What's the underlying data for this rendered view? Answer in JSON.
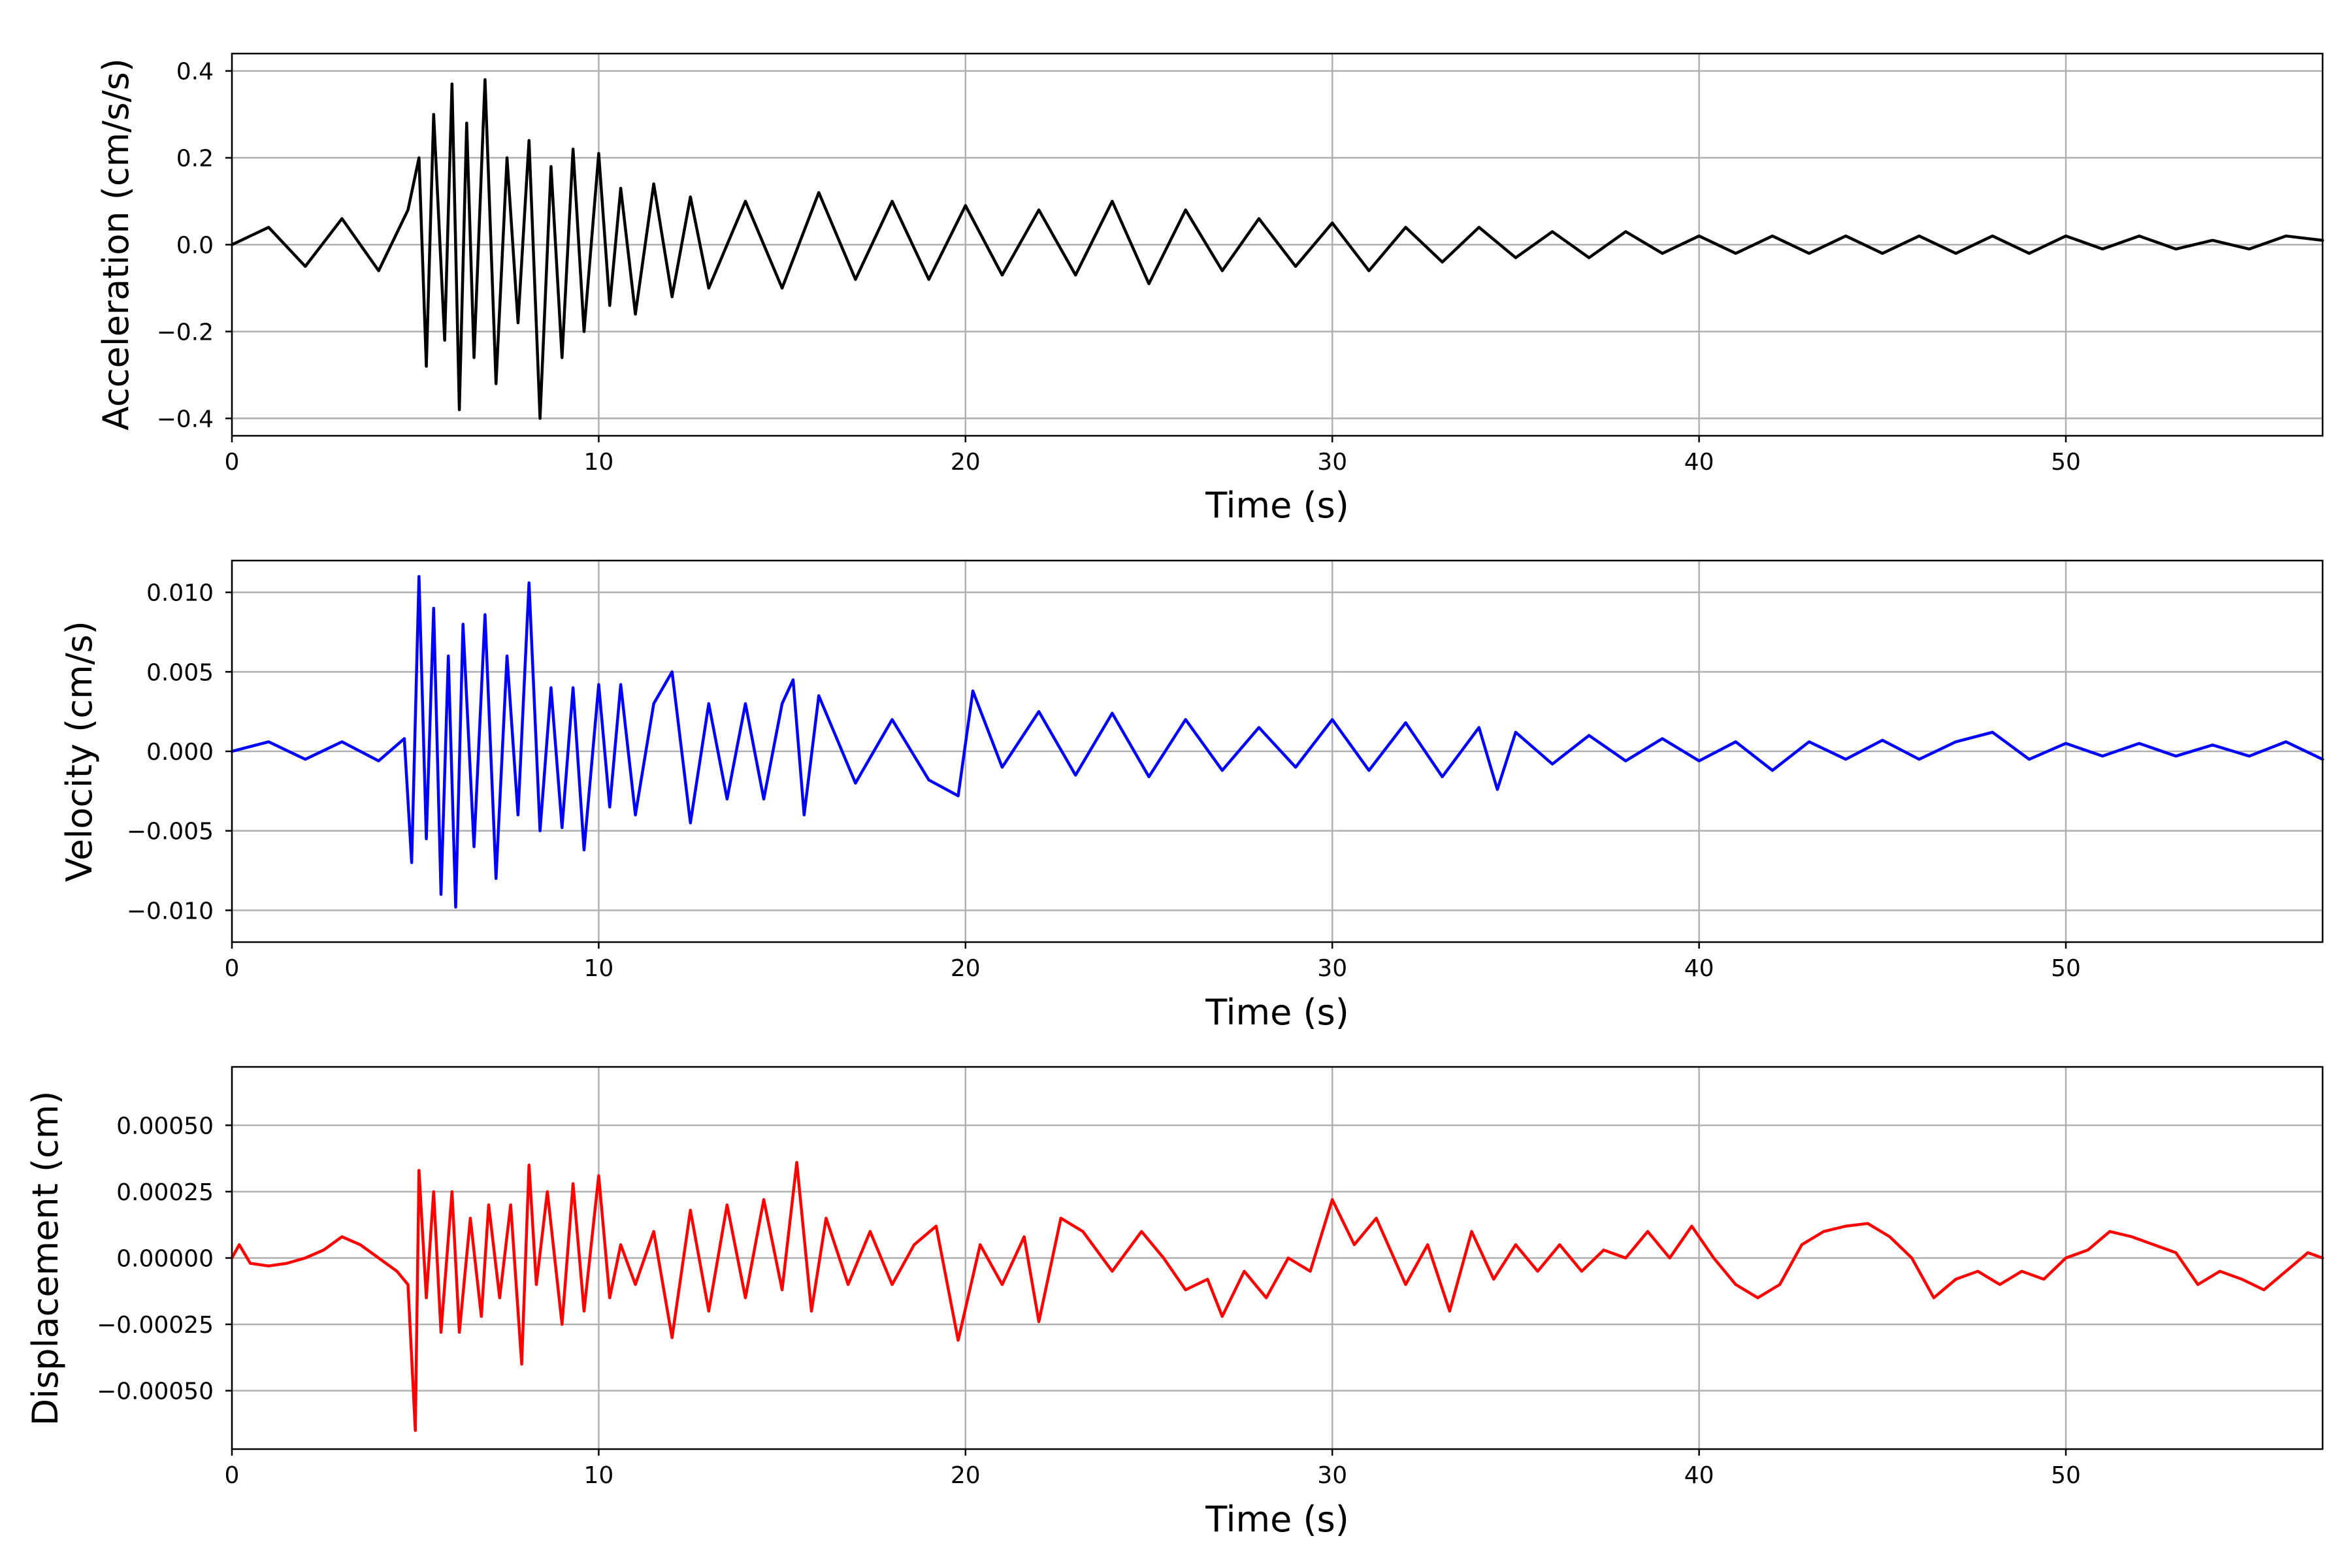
{
  "chart_data": [
    {
      "type": "line",
      "title": "",
      "xlabel": "Time (s)",
      "ylabel": "Acceleration (cm/s/s)",
      "xlim": [
        0,
        57
      ],
      "ylim": [
        -0.44,
        0.44
      ],
      "xticks": [
        0,
        10,
        20,
        30,
        40,
        50
      ],
      "xtick_labels": [
        "0",
        "10",
        "20",
        "30",
        "40",
        "50"
      ],
      "yticks": [
        -0.4,
        -0.2,
        0.0,
        0.2,
        0.4
      ],
      "ytick_labels": [
        "−0.4",
        "−0.2",
        "0.0",
        "0.2",
        "0.4"
      ],
      "grid": true,
      "color": "#000000",
      "series": [
        {
          "x": [
            0,
            1,
            2,
            3,
            4,
            4.8,
            5.1,
            5.3,
            5.5,
            5.8,
            6.0,
            6.2,
            6.4,
            6.6,
            6.9,
            7.2,
            7.5,
            7.8,
            8.1,
            8.4,
            8.7,
            9.0,
            9.3,
            9.6,
            10.0,
            10.3,
            10.6,
            11.0,
            11.5,
            12.0,
            12.5,
            13.0,
            14.0,
            15.0,
            16.0,
            17.0,
            18.0,
            19.0,
            20.0,
            21.0,
            22.0,
            23.0,
            24.0,
            25.0,
            26.0,
            27.0,
            28.0,
            29.0,
            30.0,
            31.0,
            32.0,
            33.0,
            34.0,
            35.0,
            36.0,
            37.0,
            38.0,
            39.0,
            40.0,
            41.0,
            42.0,
            43.0,
            44.0,
            45.0,
            46.0,
            47.0,
            48.0,
            49.0,
            50.0,
            51.0,
            52.0,
            53.0,
            54.0,
            55.0,
            56.0,
            57.0
          ],
          "y": [
            0.0,
            0.04,
            -0.05,
            0.06,
            -0.06,
            0.08,
            0.2,
            -0.28,
            0.3,
            -0.22,
            0.37,
            -0.38,
            0.28,
            -0.26,
            0.38,
            -0.32,
            0.2,
            -0.18,
            0.24,
            -0.4,
            0.18,
            -0.26,
            0.22,
            -0.2,
            0.21,
            -0.14,
            0.13,
            -0.16,
            0.14,
            -0.12,
            0.11,
            -0.1,
            0.1,
            -0.1,
            0.12,
            -0.08,
            0.1,
            -0.08,
            0.09,
            -0.07,
            0.08,
            -0.07,
            0.1,
            -0.09,
            0.08,
            -0.06,
            0.06,
            -0.05,
            0.05,
            -0.06,
            0.04,
            -0.04,
            0.04,
            -0.03,
            0.03,
            -0.03,
            0.03,
            -0.02,
            0.02,
            -0.02,
            0.02,
            -0.02,
            0.02,
            -0.02,
            0.02,
            -0.02,
            0.02,
            -0.02,
            0.02,
            -0.01,
            0.02,
            -0.01,
            0.01,
            -0.01,
            0.02,
            0.01
          ]
        }
      ]
    },
    {
      "type": "line",
      "title": "",
      "xlabel": "Time (s)",
      "ylabel": "Velocity (cm/s)",
      "xlim": [
        0,
        57
      ],
      "ylim": [
        -0.012,
        0.012
      ],
      "xticks": [
        0,
        10,
        20,
        30,
        40,
        50
      ],
      "xtick_labels": [
        "0",
        "10",
        "20",
        "30",
        "40",
        "50"
      ],
      "yticks": [
        -0.01,
        -0.005,
        0.0,
        0.005,
        0.01
      ],
      "ytick_labels": [
        "−0.010",
        "−0.005",
        "0.000",
        "0.005",
        "0.010"
      ],
      "grid": true,
      "color": "#0000ff",
      "series": [
        {
          "x": [
            0,
            1,
            2,
            3,
            4,
            4.7,
            4.9,
            5.1,
            5.3,
            5.5,
            5.7,
            5.9,
            6.1,
            6.3,
            6.6,
            6.9,
            7.2,
            7.5,
            7.8,
            8.1,
            8.4,
            8.7,
            9.0,
            9.3,
            9.6,
            10.0,
            10.3,
            10.6,
            11.0,
            11.5,
            12.0,
            12.5,
            13.0,
            13.5,
            14.0,
            14.5,
            15.0,
            15.3,
            15.6,
            16.0,
            17.0,
            18.0,
            19.0,
            19.8,
            20.2,
            21.0,
            22.0,
            23.0,
            24.0,
            25.0,
            26.0,
            27.0,
            28.0,
            29.0,
            30.0,
            31.0,
            32.0,
            33.0,
            34.0,
            34.5,
            35.0,
            36.0,
            37.0,
            38.0,
            39.0,
            40.0,
            41.0,
            42.0,
            43.0,
            44.0,
            45.0,
            46.0,
            47.0,
            48.0,
            49.0,
            50.0,
            51.0,
            52.0,
            53.0,
            54.0,
            55.0,
            56.0,
            57.0
          ],
          "y": [
            0.0,
            0.0006,
            -0.0005,
            0.0006,
            -0.0006,
            0.0008,
            -0.007,
            0.011,
            -0.0055,
            0.009,
            -0.009,
            0.006,
            -0.0098,
            0.008,
            -0.006,
            0.0086,
            -0.008,
            0.006,
            -0.004,
            0.0106,
            -0.005,
            0.004,
            -0.0048,
            0.004,
            -0.0062,
            0.0042,
            -0.0035,
            0.0042,
            -0.004,
            0.003,
            0.005,
            -0.0045,
            0.003,
            -0.003,
            0.003,
            -0.003,
            0.003,
            0.0045,
            -0.004,
            0.0035,
            -0.002,
            0.002,
            -0.0018,
            -0.0028,
            0.0038,
            -0.001,
            0.0025,
            -0.0015,
            0.0024,
            -0.0016,
            0.002,
            -0.0012,
            0.0015,
            -0.001,
            0.002,
            -0.0012,
            0.0018,
            -0.0016,
            0.0015,
            -0.0024,
            0.0012,
            -0.0008,
            0.001,
            -0.0006,
            0.0008,
            -0.0006,
            0.0006,
            -0.0012,
            0.0006,
            -0.0005,
            0.0007,
            -0.0005,
            0.0006,
            0.0012,
            -0.0005,
            0.0005,
            -0.0003,
            0.0005,
            -0.0003,
            0.0004,
            -0.0003,
            0.0006,
            -0.0005
          ]
        }
      ]
    },
    {
      "type": "line",
      "title": "",
      "xlabel": "Time (s)",
      "ylabel": "Displacement (cm)",
      "xlim": [
        0,
        57
      ],
      "ylim": [
        -0.00072,
        0.00072
      ],
      "xticks": [
        0,
        10,
        20,
        30,
        40,
        50
      ],
      "xtick_labels": [
        "0",
        "10",
        "20",
        "30",
        "40",
        "50"
      ],
      "yticks": [
        -0.0005,
        -0.00025,
        0.0,
        0.00025,
        0.0005
      ],
      "ytick_labels": [
        "−0.00050",
        "−0.00025",
        "0.00000",
        "0.00025",
        "0.00050"
      ],
      "grid": true,
      "color": "#ff0000",
      "series": [
        {
          "x": [
            0,
            0.2,
            0.5,
            1,
            1.5,
            2,
            2.5,
            3,
            3.5,
            4,
            4.5,
            4.8,
            5.0,
            5.1,
            5.3,
            5.5,
            5.7,
            6.0,
            6.2,
            6.5,
            6.8,
            7.0,
            7.3,
            7.6,
            7.9,
            8.1,
            8.3,
            8.6,
            9.0,
            9.3,
            9.6,
            10.0,
            10.3,
            10.6,
            11.0,
            11.5,
            12.0,
            12.5,
            13.0,
            13.5,
            14.0,
            14.5,
            15.0,
            15.4,
            15.8,
            16.2,
            16.8,
            17.4,
            18.0,
            18.6,
            19.2,
            19.8,
            20.4,
            21.0,
            21.6,
            22.0,
            22.6,
            23.2,
            24.0,
            24.8,
            25.4,
            26.0,
            26.6,
            27.0,
            27.6,
            28.2,
            28.8,
            29.4,
            30.0,
            30.6,
            31.2,
            32.0,
            32.6,
            33.2,
            33.8,
            34.4,
            35.0,
            35.6,
            36.2,
            36.8,
            37.4,
            38.0,
            38.6,
            39.2,
            39.8,
            40.4,
            41.0,
            41.6,
            42.2,
            42.8,
            43.4,
            44.0,
            44.6,
            45.2,
            45.8,
            46.4,
            47.0,
            47.6,
            48.2,
            48.8,
            49.4,
            50.0,
            50.6,
            51.2,
            51.8,
            52.4,
            53.0,
            53.6,
            54.2,
            54.8,
            55.4,
            56.0,
            56.6,
            57.0
          ],
          "y": [
            0.0,
            5e-05,
            -2e-05,
            -3e-05,
            -2e-05,
            0.0,
            3e-05,
            8e-05,
            5e-05,
            0.0,
            -5e-05,
            -0.0001,
            -0.00065,
            0.00033,
            -0.00015,
            0.00025,
            -0.00028,
            0.00025,
            -0.00028,
            0.00015,
            -0.00022,
            0.0002,
            -0.00015,
            0.0002,
            -0.0004,
            0.00035,
            -0.0001,
            0.00025,
            -0.00025,
            0.00028,
            -0.0002,
            0.00031,
            -0.00015,
            5e-05,
            -0.0001,
            0.0001,
            -0.0003,
            0.00018,
            -0.0002,
            0.0002,
            -0.00015,
            0.00022,
            -0.00012,
            0.00036,
            -0.0002,
            0.00015,
            -0.0001,
            0.0001,
            -0.0001,
            5e-05,
            0.00012,
            -0.00031,
            5e-05,
            -0.0001,
            8e-05,
            -0.00024,
            0.00015,
            0.0001,
            -5e-05,
            0.0001,
            0.0,
            -0.00012,
            -8e-05,
            -0.00022,
            -5e-05,
            -0.00015,
            0.0,
            -5e-05,
            0.00022,
            5e-05,
            0.00015,
            -0.0001,
            5e-05,
            -0.0002,
            0.0001,
            -8e-05,
            5e-05,
            -5e-05,
            5e-05,
            -5e-05,
            3e-05,
            0.0,
            0.0001,
            0.0,
            0.00012,
            0.0,
            -0.0001,
            -0.00015,
            -0.0001,
            5e-05,
            0.0001,
            0.00012,
            0.00013,
            8e-05,
            0.0,
            -0.00015,
            -8e-05,
            -5e-05,
            -0.0001,
            -5e-05,
            -8e-05,
            0.0,
            3e-05,
            0.0001,
            8e-05,
            5e-05,
            2e-05,
            -0.0001,
            -5e-05,
            -8e-05,
            -0.00012,
            -5e-05,
            2e-05,
            0.0
          ]
        }
      ]
    }
  ]
}
